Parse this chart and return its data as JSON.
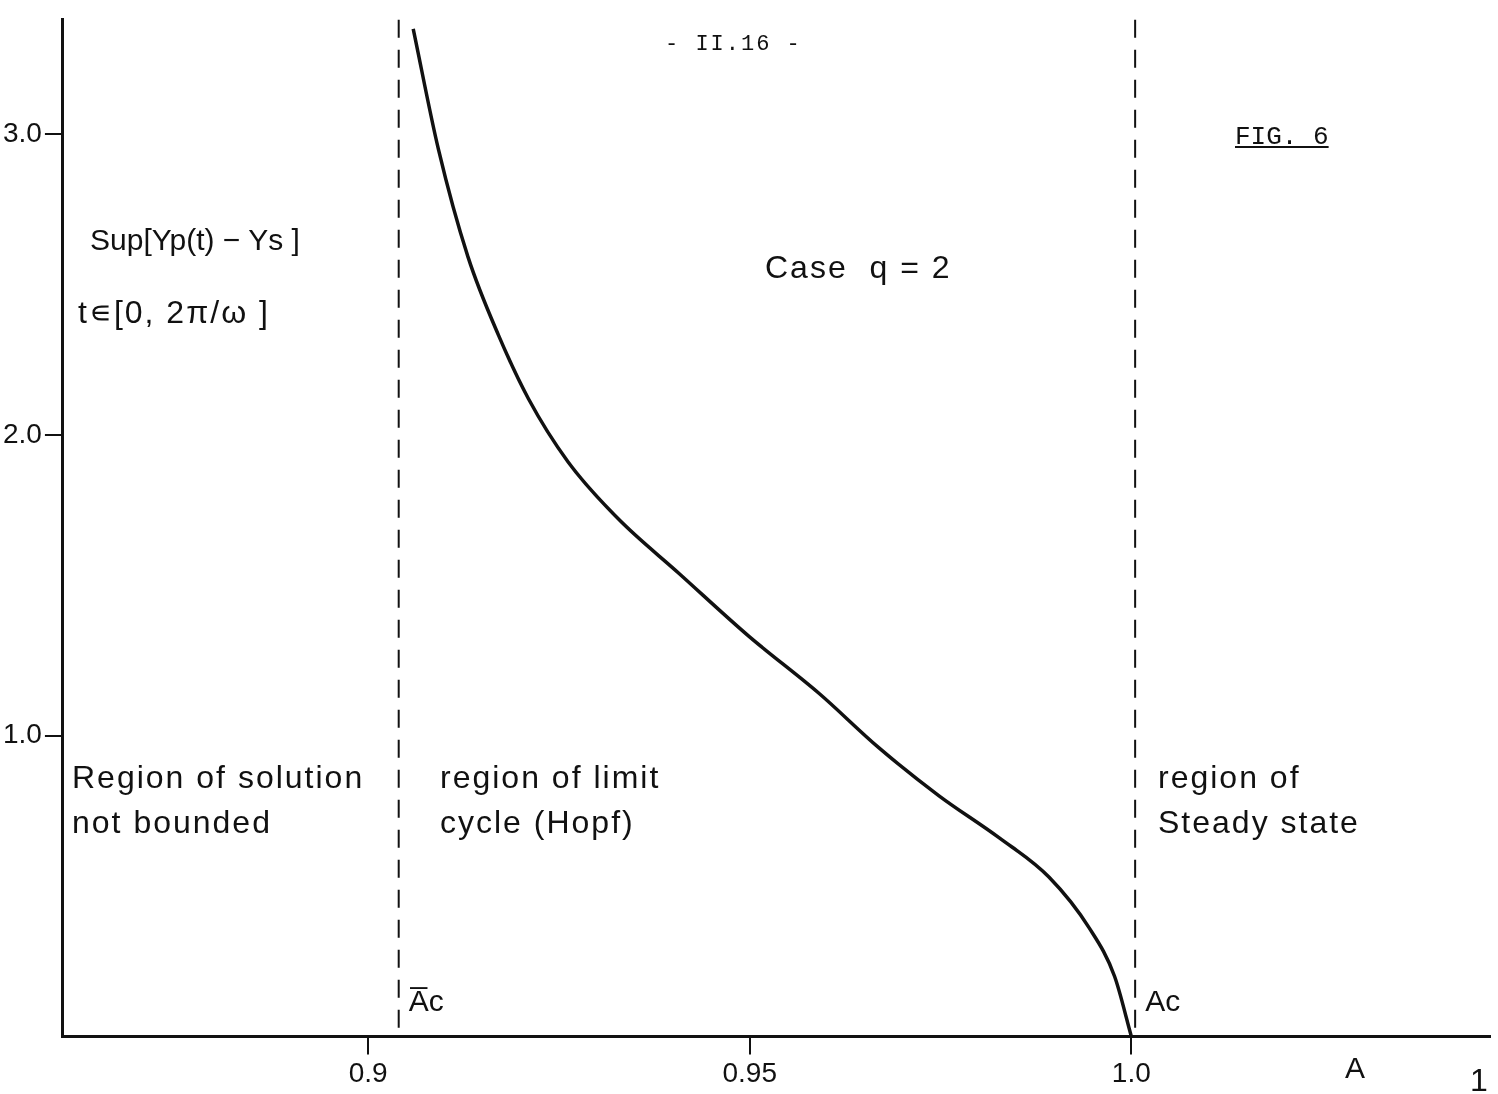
{
  "chart_data": {
    "type": "line",
    "title": "FIG. 6",
    "xlabel": "A",
    "ylabel": "Sup[Yp(t) − Ys ]",
    "annotations": [
      "- II.16 -",
      "t∊[0, 2π/ω ]",
      "Case  q = 2",
      "Region of solution\nnot bounded",
      "region of limit\ncycle (Hopf)",
      "region of\nSteady state",
      "1"
    ],
    "series": [
      {
        "color": "#111111",
        "x": [
          0.9059,
          0.9092,
          0.9131,
          0.9171,
          0.921,
          0.9262,
          0.9328,
          0.9407,
          0.9499,
          0.9591,
          0.9669,
          0.9748,
          0.9827,
          0.9892,
          0.9945,
          0.9978,
          1.0
        ],
        "values": [
          3.35,
          2.95,
          2.59,
          2.33,
          2.12,
          1.91,
          1.72,
          1.54,
          1.33,
          1.14,
          0.96,
          0.8,
          0.66,
          0.53,
          0.36,
          0.2,
          0
        ]
      }
    ],
    "xlim": [
      0.86,
      1.047
    ],
    "xticks": [
      0.9,
      0.95,
      {
        "value": 1,
        "label": "1.0"
      }
    ],
    "ylim": [
      0,
      3.38
    ],
    "yticks": [
      {
        "value": 1,
        "label": "1.0"
      },
      {
        "value": 2,
        "label": "2.0"
      },
      {
        "value": 3,
        "label": "3.0"
      }
    ],
    "ref_lines": [
      {
        "axis": "x",
        "value": 0.904,
        "label": "A̅c",
        "line_style": "dashed"
      },
      {
        "axis": "x",
        "value": 1.0005,
        "label": "Ac",
        "line_style": "dashed"
      }
    ],
    "grid": false,
    "legend": false,
    "marker": "none",
    "line_style": "solid"
  }
}
